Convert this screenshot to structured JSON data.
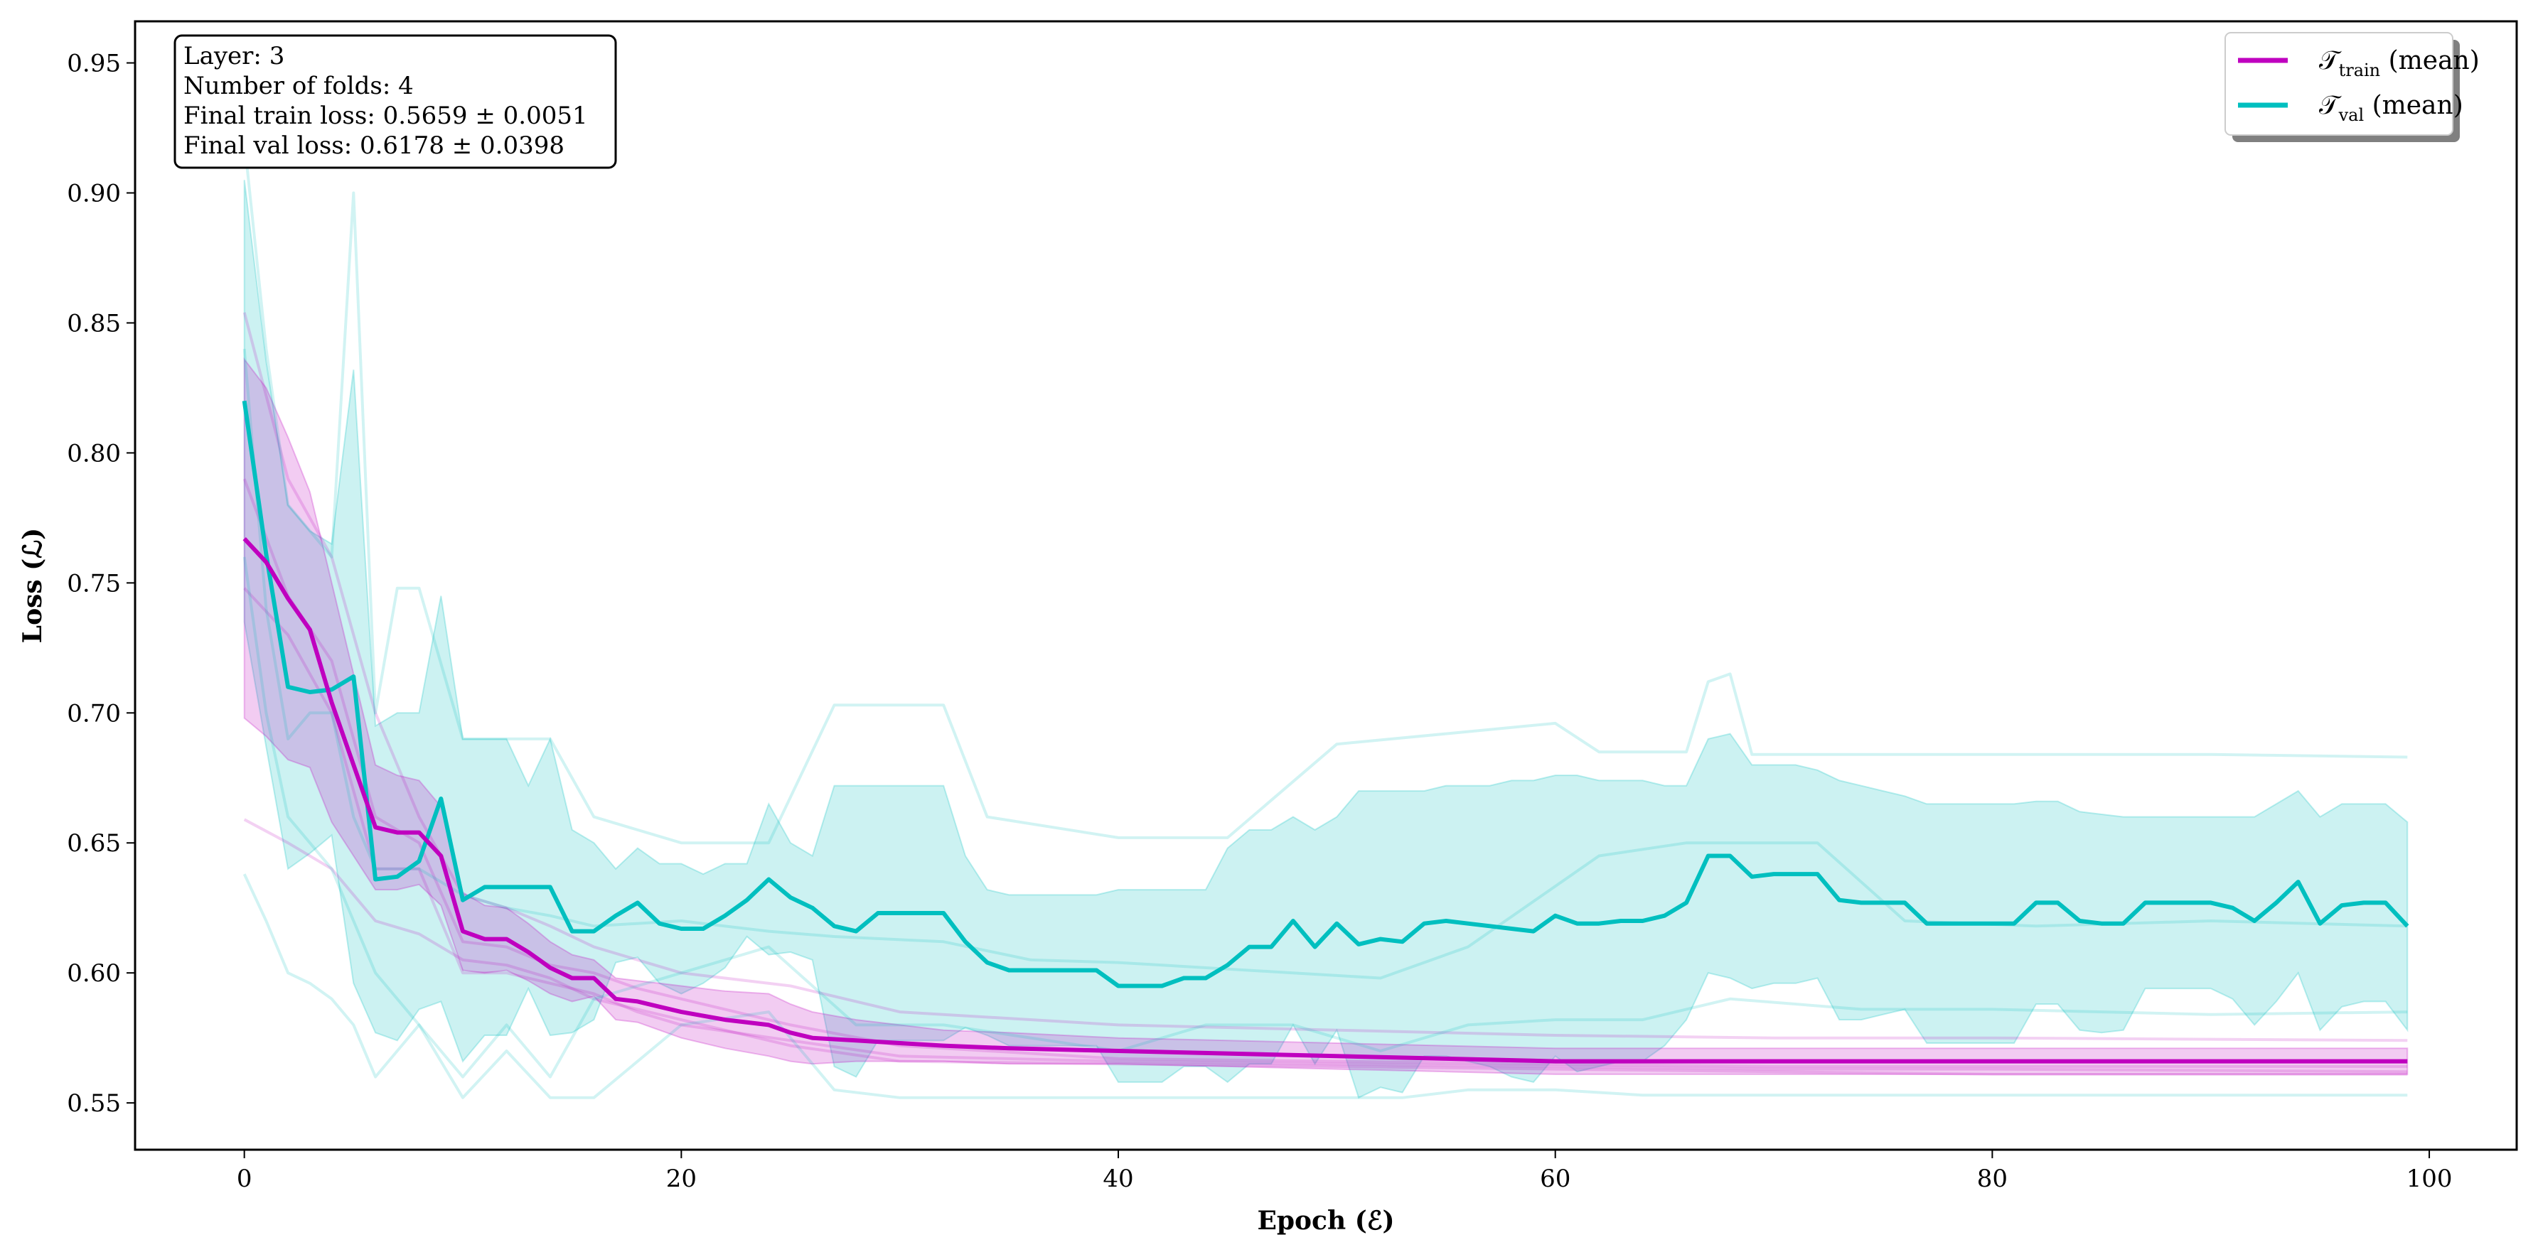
{
  "chart_data": {
    "type": "line",
    "xlabel": "Epoch (ℰ)",
    "ylabel": "Loss (ℒ)",
    "xlim": [
      -5,
      104
    ],
    "ylim": [
      0.532,
      0.966
    ],
    "xticks": [
      0,
      20,
      40,
      60,
      80,
      100
    ],
    "yticks": [
      0.55,
      0.6,
      0.65,
      0.7,
      0.75,
      0.8,
      0.85,
      0.9,
      0.95
    ],
    "info_box": [
      "Layer: 3",
      "Number of folds: 4",
      "Final train loss: 0.5659 ± 0.0051",
      "Final val loss: 0.6178 ± 0.0398"
    ],
    "legend": [
      {
        "symbol": "𝒯",
        "subscript": "train",
        "suffix": " (mean)",
        "color": "#bf00bf"
      },
      {
        "symbol": "𝒯",
        "subscript": "val",
        "suffix": " (mean)",
        "color": "#00bfbf"
      }
    ],
    "series": [
      {
        "name": "T_train (mean)",
        "color": "#bf00bf",
        "x": [
          0,
          1,
          2,
          3,
          4,
          5,
          6,
          7,
          8,
          9,
          10,
          11,
          12,
          13,
          14,
          15,
          16,
          17,
          18,
          19,
          20,
          22,
          24,
          25,
          26,
          28,
          30,
          32,
          35,
          40,
          45,
          50,
          55,
          60,
          70,
          80,
          90,
          99
        ],
        "values": [
          0.767,
          0.758,
          0.744,
          0.732,
          0.704,
          0.68,
          0.656,
          0.654,
          0.654,
          0.645,
          0.616,
          0.613,
          0.613,
          0.608,
          0.602,
          0.598,
          0.598,
          0.59,
          0.589,
          0.587,
          0.585,
          0.582,
          0.58,
          0.577,
          0.575,
          0.574,
          0.573,
          0.572,
          0.571,
          0.57,
          0.569,
          0.568,
          0.567,
          0.566,
          0.566,
          0.566,
          0.566,
          0.566
        ],
        "band_upper": [
          0.836,
          0.825,
          0.806,
          0.785,
          0.75,
          0.715,
          0.68,
          0.676,
          0.674,
          0.664,
          0.631,
          0.626,
          0.625,
          0.619,
          0.612,
          0.607,
          0.605,
          0.598,
          0.597,
          0.596,
          0.595,
          0.593,
          0.592,
          0.588,
          0.585,
          0.582,
          0.58,
          0.578,
          0.577,
          0.575,
          0.574,
          0.573,
          0.572,
          0.571,
          0.571,
          0.571,
          0.571,
          0.571
        ],
        "band_lower": [
          0.698,
          0.691,
          0.682,
          0.679,
          0.658,
          0.645,
          0.632,
          0.632,
          0.634,
          0.626,
          0.601,
          0.6,
          0.601,
          0.597,
          0.592,
          0.589,
          0.591,
          0.582,
          0.581,
          0.578,
          0.575,
          0.571,
          0.568,
          0.566,
          0.565,
          0.566,
          0.566,
          0.566,
          0.565,
          0.565,
          0.564,
          0.563,
          0.562,
          0.561,
          0.561,
          0.561,
          0.561,
          0.561
        ]
      },
      {
        "name": "T_val (mean)",
        "color": "#00bfbf",
        "x": [
          0,
          1,
          2,
          3,
          4,
          5,
          6,
          7,
          8,
          9,
          10,
          11,
          12,
          13,
          14,
          15,
          16,
          17,
          18,
          19,
          20,
          21,
          22,
          23,
          24,
          25,
          26,
          27,
          28,
          29,
          30,
          31,
          32,
          33,
          34,
          35,
          36,
          37,
          38,
          39,
          40,
          41,
          42,
          43,
          44,
          45,
          46,
          47,
          48,
          49,
          50,
          51,
          52,
          53,
          54,
          55,
          56,
          57,
          58,
          59,
          60,
          61,
          62,
          63,
          64,
          65,
          66,
          67,
          68,
          69,
          70,
          71,
          72,
          73,
          74,
          75,
          76,
          77,
          78,
          79,
          80,
          81,
          82,
          83,
          84,
          85,
          86,
          87,
          88,
          89,
          90,
          91,
          92,
          93,
          94,
          95,
          96,
          97,
          98,
          99
        ],
        "values": [
          0.82,
          0.761,
          0.71,
          0.708,
          0.709,
          0.714,
          0.636,
          0.637,
          0.643,
          0.667,
          0.628,
          0.633,
          0.633,
          0.633,
          0.633,
          0.616,
          0.616,
          0.622,
          0.627,
          0.619,
          0.617,
          0.617,
          0.622,
          0.628,
          0.636,
          0.629,
          0.625,
          0.618,
          0.616,
          0.623,
          0.623,
          0.623,
          0.623,
          0.612,
          0.604,
          0.601,
          0.601,
          0.601,
          0.601,
          0.601,
          0.595,
          0.595,
          0.595,
          0.598,
          0.598,
          0.603,
          0.61,
          0.61,
          0.62,
          0.61,
          0.619,
          0.611,
          0.613,
          0.612,
          0.619,
          0.62,
          0.619,
          0.618,
          0.617,
          0.616,
          0.622,
          0.619,
          0.619,
          0.62,
          0.62,
          0.622,
          0.627,
          0.645,
          0.645,
          0.637,
          0.638,
          0.638,
          0.638,
          0.628,
          0.627,
          0.627,
          0.627,
          0.619,
          0.619,
          0.619,
          0.619,
          0.619,
          0.627,
          0.627,
          0.62,
          0.619,
          0.619,
          0.627,
          0.627,
          0.627,
          0.627,
          0.625,
          0.62,
          0.627,
          0.635,
          0.619,
          0.626,
          0.627,
          0.627,
          0.618
        ],
        "band_upper": [
          0.905,
          0.835,
          0.78,
          0.77,
          0.765,
          0.832,
          0.695,
          0.7,
          0.7,
          0.745,
          0.69,
          0.69,
          0.69,
          0.672,
          0.69,
          0.655,
          0.65,
          0.64,
          0.648,
          0.642,
          0.642,
          0.638,
          0.642,
          0.642,
          0.665,
          0.65,
          0.645,
          0.672,
          0.672,
          0.672,
          0.672,
          0.672,
          0.672,
          0.645,
          0.632,
          0.63,
          0.63,
          0.63,
          0.63,
          0.63,
          0.632,
          0.632,
          0.632,
          0.632,
          0.632,
          0.648,
          0.655,
          0.655,
          0.66,
          0.655,
          0.66,
          0.67,
          0.67,
          0.67,
          0.67,
          0.672,
          0.672,
          0.672,
          0.674,
          0.674,
          0.676,
          0.676,
          0.674,
          0.674,
          0.674,
          0.672,
          0.672,
          0.69,
          0.692,
          0.68,
          0.68,
          0.68,
          0.678,
          0.674,
          0.672,
          0.67,
          0.668,
          0.665,
          0.665,
          0.665,
          0.665,
          0.665,
          0.666,
          0.666,
          0.662,
          0.661,
          0.66,
          0.66,
          0.66,
          0.66,
          0.66,
          0.66,
          0.66,
          0.665,
          0.67,
          0.66,
          0.665,
          0.665,
          0.665,
          0.658
        ],
        "band_lower": [
          0.735,
          0.687,
          0.64,
          0.646,
          0.653,
          0.596,
          0.577,
          0.574,
          0.586,
          0.589,
          0.566,
          0.576,
          0.576,
          0.594,
          0.576,
          0.577,
          0.582,
          0.604,
          0.606,
          0.596,
          0.592,
          0.596,
          0.602,
          0.614,
          0.607,
          0.608,
          0.605,
          0.564,
          0.56,
          0.574,
          0.574,
          0.574,
          0.574,
          0.579,
          0.576,
          0.572,
          0.572,
          0.572,
          0.572,
          0.572,
          0.558,
          0.558,
          0.558,
          0.564,
          0.564,
          0.558,
          0.565,
          0.565,
          0.58,
          0.565,
          0.578,
          0.552,
          0.556,
          0.554,
          0.568,
          0.568,
          0.566,
          0.564,
          0.56,
          0.558,
          0.568,
          0.562,
          0.564,
          0.566,
          0.566,
          0.572,
          0.582,
          0.6,
          0.598,
          0.594,
          0.596,
          0.596,
          0.598,
          0.582,
          0.582,
          0.584,
          0.586,
          0.573,
          0.573,
          0.573,
          0.573,
          0.573,
          0.588,
          0.588,
          0.578,
          0.577,
          0.578,
          0.594,
          0.594,
          0.594,
          0.594,
          0.59,
          0.58,
          0.589,
          0.6,
          0.578,
          0.587,
          0.589,
          0.589,
          0.578
        ]
      }
    ],
    "fold_lines": [
      {
        "series": "train",
        "x": [
          0,
          2,
          4,
          6,
          8,
          10,
          12,
          14,
          16,
          18,
          20,
          25,
          30,
          40,
          50,
          60,
          70,
          80,
          99
        ],
        "values": [
          0.854,
          0.79,
          0.76,
          0.7,
          0.66,
          0.63,
          0.625,
          0.618,
          0.61,
          0.605,
          0.6,
          0.595,
          0.585,
          0.58,
          0.578,
          0.576,
          0.575,
          0.575,
          0.574
        ]
      },
      {
        "series": "train",
        "x": [
          0,
          2,
          4,
          6,
          8,
          10,
          12,
          14,
          16,
          18,
          20,
          25,
          30,
          40,
          50,
          60,
          70,
          80,
          99
        ],
        "values": [
          0.79,
          0.745,
          0.72,
          0.66,
          0.65,
          0.612,
          0.61,
          0.603,
          0.6,
          0.594,
          0.59,
          0.58,
          0.572,
          0.567,
          0.566,
          0.565,
          0.564,
          0.564,
          0.564
        ]
      },
      {
        "series": "train",
        "x": [
          0,
          2,
          4,
          6,
          8,
          10,
          12,
          14,
          16,
          18,
          20,
          25,
          30,
          40,
          50,
          60,
          70,
          80,
          99
        ],
        "values": [
          0.748,
          0.73,
          0.7,
          0.64,
          0.64,
          0.6,
          0.6,
          0.596,
          0.592,
          0.585,
          0.58,
          0.574,
          0.568,
          0.566,
          0.565,
          0.564,
          0.563,
          0.563,
          0.562
        ]
      },
      {
        "series": "train",
        "x": [
          0,
          2,
          4,
          6,
          8,
          10,
          12,
          14,
          16,
          18,
          20,
          25,
          30,
          40,
          50,
          60,
          70,
          80,
          99
        ],
        "values": [
          0.659,
          0.65,
          0.64,
          0.62,
          0.615,
          0.605,
          0.603,
          0.598,
          0.59,
          0.586,
          0.582,
          0.572,
          0.566,
          0.565,
          0.564,
          0.563,
          0.562,
          0.561,
          0.561
        ]
      },
      {
        "series": "val",
        "x": [
          0,
          1,
          2,
          3,
          4,
          5,
          6,
          7,
          8,
          10,
          12,
          14,
          16,
          20,
          24,
          27,
          30,
          32,
          34,
          40,
          45,
          50,
          55,
          60,
          62,
          66,
          67,
          68,
          69,
          72,
          76,
          80,
          90,
          99
        ],
        "values": [
          0.92,
          0.84,
          0.78,
          0.77,
          0.76,
          0.9,
          0.7,
          0.748,
          0.748,
          0.69,
          0.69,
          0.69,
          0.66,
          0.65,
          0.65,
          0.703,
          0.703,
          0.703,
          0.66,
          0.652,
          0.652,
          0.688,
          0.692,
          0.696,
          0.685,
          0.685,
          0.712,
          0.715,
          0.684,
          0.684,
          0.684,
          0.684,
          0.684,
          0.683
        ]
      },
      {
        "series": "val",
        "x": [
          0,
          1,
          2,
          3,
          4,
          5,
          6,
          8,
          10,
          12,
          14,
          16,
          20,
          24,
          27,
          32,
          36,
          40,
          48,
          52,
          56,
          62,
          66,
          72,
          76,
          82,
          90,
          99
        ],
        "values": [
          0.84,
          0.74,
          0.69,
          0.7,
          0.7,
          0.66,
          0.64,
          0.64,
          0.63,
          0.625,
          0.622,
          0.618,
          0.62,
          0.616,
          0.614,
          0.612,
          0.605,
          0.604,
          0.6,
          0.598,
          0.61,
          0.645,
          0.65,
          0.65,
          0.62,
          0.618,
          0.62,
          0.618
        ]
      },
      {
        "series": "val",
        "x": [
          0,
          1,
          2,
          3,
          4,
          5,
          6,
          8,
          10,
          12,
          14,
          16,
          20,
          24,
          28,
          32,
          40,
          44,
          48,
          52,
          56,
          60,
          64,
          68,
          74,
          80,
          90,
          99
        ],
        "values": [
          0.76,
          0.7,
          0.66,
          0.65,
          0.64,
          0.62,
          0.6,
          0.58,
          0.56,
          0.58,
          0.56,
          0.59,
          0.6,
          0.61,
          0.58,
          0.58,
          0.57,
          0.58,
          0.58,
          0.57,
          0.58,
          0.582,
          0.582,
          0.59,
          0.586,
          0.586,
          0.584,
          0.585
        ]
      },
      {
        "series": "val",
        "x": [
          0,
          1,
          2,
          3,
          4,
          5,
          6,
          8,
          10,
          12,
          14,
          16,
          20,
          24,
          27,
          30,
          34,
          40,
          44,
          48,
          51,
          53,
          56,
          60,
          64,
          66,
          70,
          80,
          99
        ],
        "values": [
          0.638,
          0.62,
          0.6,
          0.596,
          0.59,
          0.58,
          0.56,
          0.58,
          0.552,
          0.57,
          0.552,
          0.552,
          0.58,
          0.585,
          0.555,
          0.552,
          0.552,
          0.552,
          0.552,
          0.552,
          0.552,
          0.552,
          0.555,
          0.555,
          0.553,
          0.553,
          0.553,
          0.553,
          0.553
        ]
      }
    ]
  }
}
